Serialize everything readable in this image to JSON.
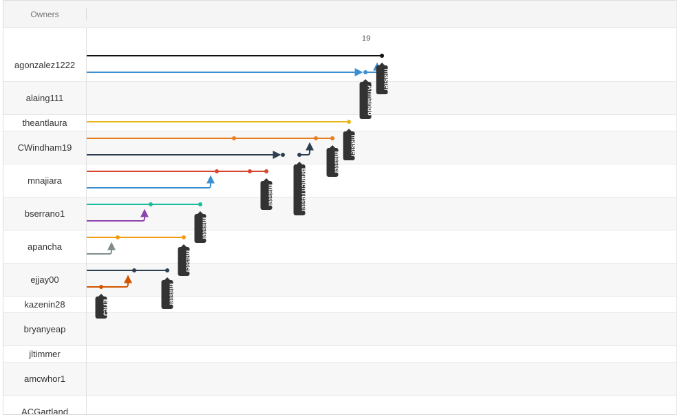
{
  "header": {
    "owners_label": "Owners"
  },
  "axis": {
    "date_label": "19"
  },
  "owners": [
    {
      "name": "agonzalez1222"
    },
    {
      "name": "alaing111"
    },
    {
      "name": "theantlaura"
    },
    {
      "name": "CWindham19"
    },
    {
      "name": "mnajiara"
    },
    {
      "name": "bserrano1"
    },
    {
      "name": "apancha"
    },
    {
      "name": "ejjay00"
    },
    {
      "name": "kazenin28"
    },
    {
      "name": "bryanyeap"
    },
    {
      "name": "jltimmer"
    },
    {
      "name": "amcwhor1"
    },
    {
      "name": "ACGartland"
    }
  ],
  "branch_tags": [
    "master",
    "Armando",
    "master",
    "master",
    "BranchTester",
    "master",
    "master",
    "master",
    "master",
    "EricJ"
  ],
  "colors": {
    "black": "#111111",
    "blue": "#3b8fd0",
    "yellow": "#e6b717",
    "orange": "#e67e22",
    "navy": "#2c3e50",
    "red": "#d9452d",
    "teal": "#1abc9c",
    "purple": "#8e44ad",
    "amber": "#f39c12",
    "gray": "#7f8c8d",
    "rust": "#d35400",
    "tag_bg": "#333333"
  }
}
